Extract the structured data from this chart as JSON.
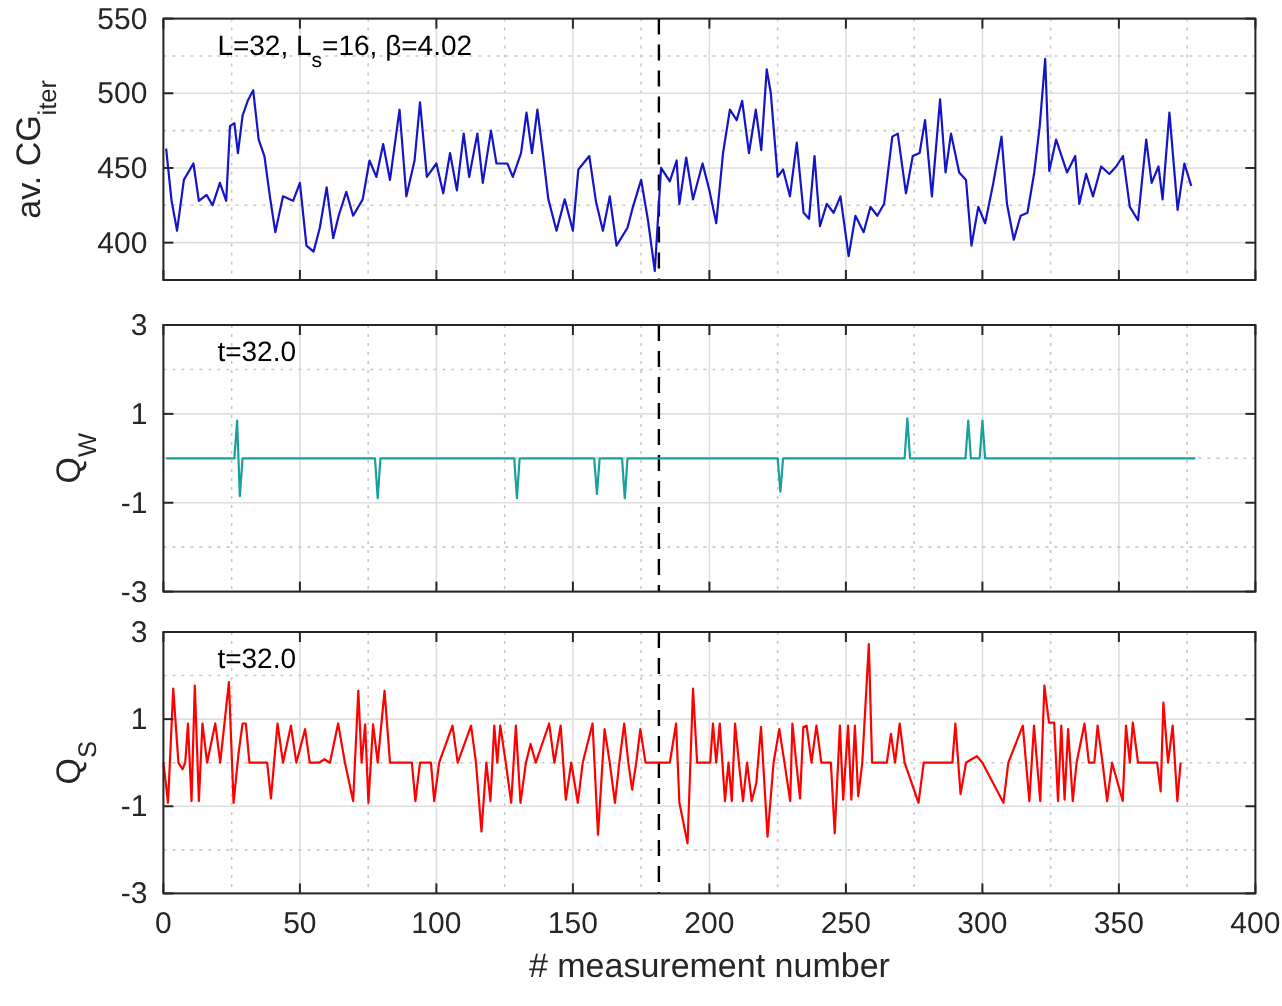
{
  "chart_data": [
    {
      "type": "line",
      "ylabel": "av. CG$_{iter}$",
      "annotations": [
        "L=32, L$_{s}$=16, β=4.02"
      ],
      "xlim": [
        0,
        400
      ],
      "xticks": [
        0,
        {
          "value": 25,
          "label": null
        },
        50,
        {
          "value": 75,
          "label": null
        },
        100,
        {
          "value": 125,
          "label": null
        },
        150,
        {
          "value": 175,
          "label": null
        },
        200,
        {
          "value": 225,
          "label": null
        },
        250,
        {
          "value": 275,
          "label": null
        },
        300,
        {
          "value": 325,
          "label": null
        },
        350,
        {
          "value": 375,
          "label": null
        },
        400
      ],
      "ylim": [
        375,
        550
      ],
      "yticks": [
        400,
        {
          "value": 425,
          "label": null
        },
        450,
        {
          "value": 475,
          "label": null
        },
        500,
        {
          "value": 525,
          "label": null
        },
        550
      ],
      "grid": true,
      "tick_labels": "y",
      "ref_lines": [
        {
          "axis": "x",
          "value": 181.5,
          "color": "#000000",
          "line_style": "dashed"
        }
      ],
      "series": [
        {
          "color": "#1414c8",
          "x": [
            1,
            3,
            5,
            7.5,
            11,
            13,
            15.8,
            18,
            20.7,
            23,
            24.4,
            26,
            27.3,
            29,
            30.9,
            32.9,
            34.9,
            37,
            39,
            41,
            43.8,
            47.5,
            50,
            52.4,
            55,
            57.3,
            59.8,
            62.2,
            64.2,
            67,
            69.5,
            73,
            75.5,
            78,
            80.5,
            83,
            86.5,
            89,
            92,
            94,
            96.5,
            100,
            102.5,
            105,
            107.5,
            110,
            112,
            115,
            117,
            120,
            122,
            126,
            128,
            131,
            133,
            135,
            137,
            139,
            141,
            144,
            147,
            150,
            152,
            156,
            158.5,
            161,
            163.5,
            166,
            170,
            172,
            175,
            177.5,
            180,
            182.3,
            185.5,
            188,
            189,
            191.5,
            194,
            197.5,
            200,
            202.5,
            205,
            207.5,
            210,
            212,
            214.5,
            217,
            219,
            221,
            222.5,
            225,
            227,
            229.5,
            232,
            234.5,
            236.5,
            238.5,
            240.5,
            243,
            245.5,
            248,
            251,
            253.5,
            256.5,
            259,
            261.5,
            264,
            267,
            269,
            272,
            274.5,
            277,
            279,
            281.5,
            284.5,
            286.5,
            288.5,
            291.5,
            294,
            296,
            298.5,
            301,
            304,
            307,
            309,
            311.5,
            314,
            316.5,
            319,
            321,
            323,
            324.5,
            327,
            331,
            334,
            335.5,
            338,
            340.5,
            343.5,
            346.5,
            349,
            351.5,
            354,
            357,
            360,
            362,
            364.5,
            366,
            368.5,
            371.5,
            374,
            376.5
          ],
          "values": [
            463,
            428,
            408,
            442,
            453,
            428,
            432,
            425,
            440,
            428,
            478,
            480,
            460,
            485,
            495,
            502,
            469,
            458,
            431,
            407,
            431,
            428,
            440,
            398,
            394,
            410,
            437,
            403,
            418,
            434,
            418,
            429,
            455,
            444,
            466,
            442,
            489,
            431,
            455,
            494,
            444,
            453,
            433,
            460,
            435,
            473,
            444,
            473,
            440,
            475,
            453,
            453,
            444,
            460,
            487,
            460,
            489,
            460,
            429,
            408,
            429,
            408,
            449,
            458,
            427,
            408,
            431,
            398,
            410,
            424,
            442,
            415,
            381,
            450,
            441,
            455,
            426,
            457,
            429,
            453,
            435,
            413,
            460,
            489,
            482,
            495,
            460,
            489,
            462,
            516,
            500,
            444,
            449,
            431,
            467,
            420,
            416,
            458,
            411,
            426,
            420,
            431,
            391,
            418,
            407,
            424,
            418,
            426,
            471,
            473,
            433,
            458,
            460,
            482,
            431,
            496,
            447,
            473,
            447,
            442,
            398,
            424,
            413,
            440,
            471,
            426,
            402,
            418,
            420,
            447,
            478,
            523,
            448,
            469,
            447,
            458,
            426,
            446,
            431,
            451,
            446,
            451,
            458,
            424,
            415,
            469,
            440,
            451,
            429,
            487,
            422,
            453,
            438
          ]
        }
      ]
    },
    {
      "type": "line",
      "ylabel": "Q$_{W}$",
      "annotations": [
        "t=32.0"
      ],
      "xlim": [
        0,
        400
      ],
      "xticks": [
        0,
        {
          "value": 25,
          "label": null
        },
        50,
        {
          "value": 75,
          "label": null
        },
        100,
        {
          "value": 125,
          "label": null
        },
        150,
        {
          "value": 175,
          "label": null
        },
        200,
        {
          "value": 225,
          "label": null
        },
        250,
        {
          "value": 275,
          "label": null
        },
        300,
        {
          "value": 325,
          "label": null
        },
        350,
        {
          "value": 375,
          "label": null
        },
        400
      ],
      "ylim": [
        -3,
        3
      ],
      "yticks": [
        -3,
        {
          "value": -2,
          "label": null
        },
        -1,
        {
          "value": 0,
          "label": null
        },
        1,
        {
          "value": 2,
          "label": null
        },
        3
      ],
      "grid": true,
      "tick_labels": "y",
      "ref_lines": [
        {
          "axis": "x",
          "value": 181.5,
          "color": "#000000",
          "line_style": "dashed"
        }
      ],
      "series": [
        {
          "color": "#18a09a",
          "x": [
            1,
            26,
            27,
            28,
            29,
            77.5,
            78.5,
            79.5,
            128.5,
            129.5,
            130.5,
            157.8,
            158.8,
            159.8,
            168,
            169,
            170,
            225,
            226,
            227,
            271.5,
            272.5,
            273.5,
            293.8,
            294.8,
            295.8,
            299,
            300,
            301,
            378
          ],
          "values": [
            0,
            0,
            0.85,
            -0.85,
            0,
            0,
            -0.9,
            0,
            0,
            -0.9,
            0,
            0,
            -0.8,
            0,
            0,
            -0.9,
            0,
            0,
            -0.75,
            0,
            0,
            0.9,
            0,
            0,
            0.85,
            0,
            0,
            0.85,
            0,
            0
          ]
        }
      ]
    },
    {
      "type": "line",
      "xlabel": "# measurement number",
      "ylabel": "Q$_{S}$",
      "annotations": [
        "t=32.0"
      ],
      "xlim": [
        0,
        400
      ],
      "xticks": [
        0,
        {
          "value": 25,
          "label": null
        },
        50,
        {
          "value": 75,
          "label": null
        },
        100,
        {
          "value": 125,
          "label": null
        },
        150,
        {
          "value": 175,
          "label": null
        },
        200,
        {
          "value": 225,
          "label": null
        },
        250,
        {
          "value": 275,
          "label": null
        },
        300,
        {
          "value": 325,
          "label": null
        },
        350,
        {
          "value": 375,
          "label": null
        },
        400
      ],
      "ylim": [
        -3,
        3
      ],
      "yticks": [
        -3,
        {
          "value": -2,
          "label": null
        },
        -1,
        {
          "value": 0,
          "label": null
        },
        1,
        {
          "value": 2,
          "label": null
        },
        3
      ],
      "grid": true,
      "ref_lines": [
        {
          "axis": "x",
          "value": 181.5,
          "color": "#000000",
          "line_style": "dashed"
        }
      ],
      "series": [
        {
          "color": "#ff0000",
          "x": [
            0,
            1.7,
            3.6,
            5.5,
            7,
            8,
            9,
            10.3,
            11.5,
            13,
            14.3,
            16,
            19,
            20.8,
            24,
            25.7,
            27.5,
            29,
            30.2,
            31.5,
            38,
            39.4,
            41.8,
            43.8,
            46.7,
            48.7,
            51.9,
            53.6,
            57,
            59,
            61,
            64,
            66.5,
            69.5,
            71.4,
            72.6,
            73.9,
            75.1,
            76.8,
            78.5,
            81,
            83,
            91,
            92.3,
            94,
            98,
            99.2,
            101,
            105.9,
            107.8,
            112.7,
            114.5,
            116.5,
            118.3,
            119.8,
            121.2,
            122.3,
            123.4,
            125.4,
            127.4,
            129.1,
            130.8,
            132.8,
            134.5,
            136.4,
            141.3,
            143.2,
            145.5,
            147.4,
            149.4,
            151.8,
            153.6,
            157.2,
            159.2,
            161.6,
            163.5,
            165.4,
            167,
            168.8,
            170.3,
            171.7,
            173.2,
            174.7,
            176.6,
            185.5,
            187.8,
            189,
            192,
            194,
            195.5,
            200.3,
            201.3,
            202.5,
            203.8,
            205.7,
            207,
            208.2,
            209.4,
            210.8,
            212.3,
            213.8,
            215.5,
            217.2,
            218.9,
            221.3,
            223.5,
            225.6,
            227.5,
            229.6,
            230.4,
            231.8,
            233.2,
            234.4,
            235.6,
            237.4,
            239.2,
            241,
            244.5,
            245.9,
            247.8,
            249,
            250.8,
            252,
            253.3,
            254.5,
            256,
            258.4,
            259.6,
            265,
            266.5,
            268,
            269.7,
            271.5,
            276.6,
            278.5,
            289,
            290.1,
            292,
            294,
            296,
            298,
            300,
            307.7,
            309.5,
            314.8,
            317.2,
            318.9,
            320,
            321.2,
            322.7,
            324.4,
            326.3,
            327.7,
            328.9,
            330.1,
            331.4,
            333.1,
            334.5,
            337.4,
            339,
            341,
            342.2,
            344,
            345.7,
            347.5,
            351.4,
            352.6,
            354,
            355.1,
            357,
            364,
            365.3,
            366.3,
            368,
            369.7,
            371.4,
            372.6
          ],
          "values": [
            0,
            -0.92,
            1.7,
            0,
            -0.15,
            0,
            0.9,
            -0.88,
            1.77,
            -0.88,
            0.9,
            0,
            0.9,
            0,
            1.85,
            -0.92,
            0.2,
            0.9,
            0.9,
            0,
            0,
            -0.82,
            0.9,
            0,
            0.85,
            0,
            0.77,
            0,
            0,
            0.08,
            0,
            0.9,
            0,
            -0.88,
            1.65,
            0,
            0.88,
            -0.92,
            0.88,
            0,
            1.65,
            0,
            0,
            -0.88,
            0,
            0,
            -0.88,
            0,
            0.85,
            0,
            0.85,
            0,
            -1.58,
            0,
            -0.88,
            0.85,
            0,
            0.85,
            0,
            -0.92,
            0.85,
            -0.92,
            0,
            0.43,
            0,
            0.9,
            0,
            0.85,
            -0.85,
            0,
            -0.92,
            0,
            0.9,
            -1.65,
            0.77,
            0,
            -0.92,
            0,
            0.9,
            0,
            -0.62,
            0,
            0.77,
            0,
            0,
            0.9,
            -0.92,
            -1.85,
            1.7,
            0,
            0,
            0.9,
            0,
            0.9,
            -0.88,
            0,
            -0.88,
            0.9,
            0,
            -0.88,
            0,
            -0.88,
            -0.46,
            0.82,
            -1.7,
            0,
            0.77,
            0,
            -0.88,
            0.9,
            0,
            -0.82,
            0.82,
            0.85,
            0,
            0.85,
            0,
            0,
            -1.62,
            0.85,
            -0.85,
            0.85,
            -0.85,
            0.85,
            -0.77,
            0,
            2.72,
            0,
            0,
            0.66,
            0,
            0.9,
            0,
            -0.92,
            0,
            0,
            0.9,
            -0.72,
            0,
            0.08,
            0.15,
            0,
            -0.92,
            0,
            0.85,
            -0.88,
            0.85,
            0,
            -0.88,
            1.77,
            0.92,
            0.92,
            -0.88,
            0.85,
            -0.85,
            0.77,
            -0.88,
            0,
            0.9,
            0,
            0,
            0.85,
            0,
            -0.88,
            0,
            -0.88,
            0.85,
            0,
            0.92,
            0,
            0,
            -0.66,
            1.38,
            0,
            0.85,
            -0.88,
            0
          ]
        }
      ]
    }
  ]
}
